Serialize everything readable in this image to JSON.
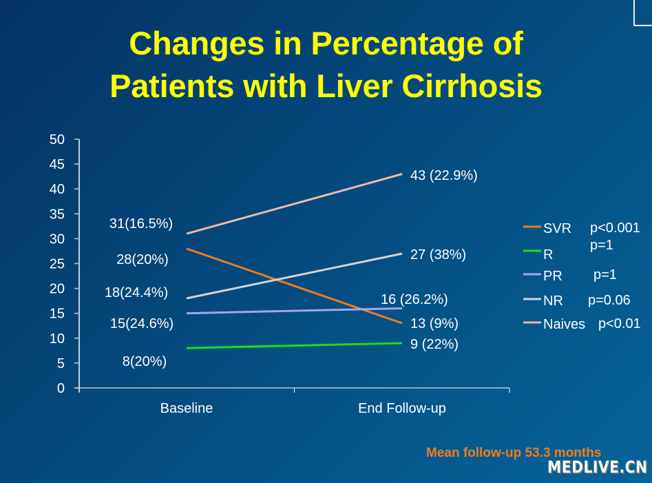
{
  "slide": {
    "title_line1": "Changes in Percentage of",
    "title_line2": "Patients with Liver Cirrhosis",
    "footnote": "Mean follow-up 53.3 months",
    "watermark": "MEDLIVE.CN"
  },
  "chart_data": {
    "type": "line",
    "title": "Changes in Percentage of Patients with Liver Cirrhosis",
    "xlabel": "",
    "ylabel": "",
    "categories": [
      "Baseline",
      "End Follow-up"
    ],
    "ylim": [
      0,
      50
    ],
    "yticks": [
      0,
      5,
      10,
      15,
      20,
      25,
      30,
      35,
      40,
      45,
      50
    ],
    "grid": false,
    "legend_position": "right",
    "series": [
      {
        "name": "SVR",
        "pvalue": "p<0.001",
        "color": "#f07a1c",
        "values": [
          28,
          13
        ],
        "labels": [
          "28(20%)",
          "13 (9%)"
        ]
      },
      {
        "name": "R",
        "pvalue": "p=1",
        "color": "#19e019",
        "values": [
          8,
          9
        ],
        "labels": [
          "8(20%)",
          "9 (22%)"
        ]
      },
      {
        "name": "PR",
        "pvalue": "p=1",
        "color": "#a3a6ea",
        "values": [
          15,
          16
        ],
        "labels": [
          "15(24.6%)",
          "16 (26.2%)"
        ]
      },
      {
        "name": "NR",
        "pvalue": "p=0.06",
        "color": "#d4d4d4",
        "values": [
          18,
          27
        ],
        "labels": [
          "18(24.4%)",
          "27 (38%)"
        ]
      },
      {
        "name": "Naives",
        "pvalue": "p<0.01",
        "color": "#f0b8a8",
        "values": [
          31,
          43
        ],
        "labels": [
          "31(16.5%)",
          "43 (22.9%)"
        ]
      }
    ]
  }
}
